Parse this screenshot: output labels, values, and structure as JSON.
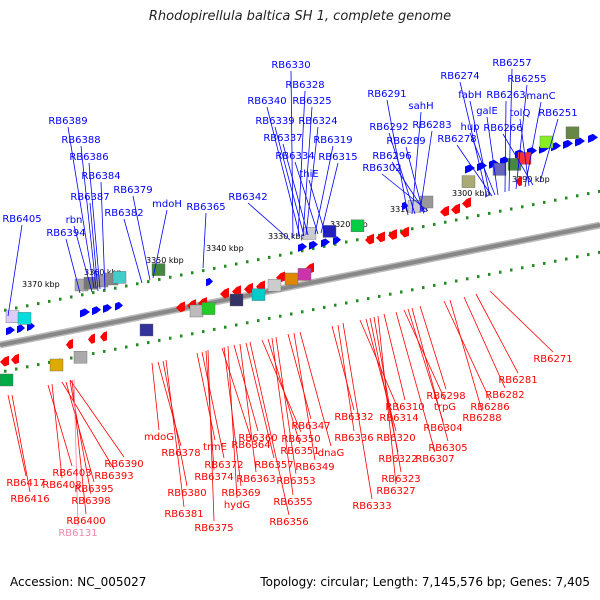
{
  "title": "Rhodopirellula baltica SH 1, complete genome",
  "footer": {
    "accession": "Accession: NC_005027",
    "summary": "Topology: circular; Length: 7,145,576 bp; Genes: 7,405"
  },
  "colors": {
    "forward": "#0000ff",
    "reverse": "#ff0000",
    "backbone": "#888888",
    "tick": "#228b22",
    "rna_label": "#ee88aa"
  },
  "scale_labels": [
    "3370 kbp",
    "3360 kbp",
    "3350 kbp",
    "3340 kbp",
    "3330 kbp",
    "3320 kbp",
    "3310 kbp",
    "3300 kbp",
    "3290 kbp"
  ],
  "top_labels": [
    "RB6405",
    "RB6394",
    "rbn",
    "RB6387",
    "RB6384",
    "RB6386",
    "RB6388",
    "RB6389",
    "RB6382",
    "RB6379",
    "mdoH",
    "RB6365",
    "RB6342",
    "RB6330",
    "RB6328",
    "RB6340",
    "RB6325",
    "RB6339",
    "RB6324",
    "RB6337",
    "RB6319",
    "RB6334",
    "RB6315",
    "thiE",
    "RB6291",
    "sahH",
    "RB6292",
    "RB6283",
    "RB6289",
    "RB6296",
    "RB6302",
    "RB6274",
    "fabH",
    "RB6278",
    "hup",
    "galE",
    "RB6263",
    "RB6257",
    "RB6255",
    "manC",
    "tolQ",
    "RB6266",
    "RB6251"
  ],
  "bottom_labels": [
    "RB6417",
    "RB6416",
    "RB6403",
    "RB6408",
    "RB6393",
    "RB6390",
    "RB6395",
    "RB6398",
    "RB6400",
    "RB6131",
    "mdoG",
    "RB6378",
    "RB6380",
    "RB6381",
    "trmE",
    "RB6372",
    "RB6374",
    "RB6375",
    "RB6364",
    "RB6369",
    "hydG",
    "RB6360",
    "RB6363",
    "RB6357",
    "RB6356",
    "RB6350",
    "RB6351",
    "RB6355",
    "RB6353",
    "RB6347",
    "RB6349",
    "dnaG",
    "RB6332",
    "RB6336",
    "RB6333",
    "RB6314",
    "RB6320",
    "RB6322",
    "RB6323",
    "RB6327",
    "RB6310",
    "RB6307",
    "trpG",
    "RB6304",
    "RB6305",
    "RB6298",
    "RB6286",
    "RB6288",
    "RB6282",
    "RB6281",
    "RB6271"
  ]
}
